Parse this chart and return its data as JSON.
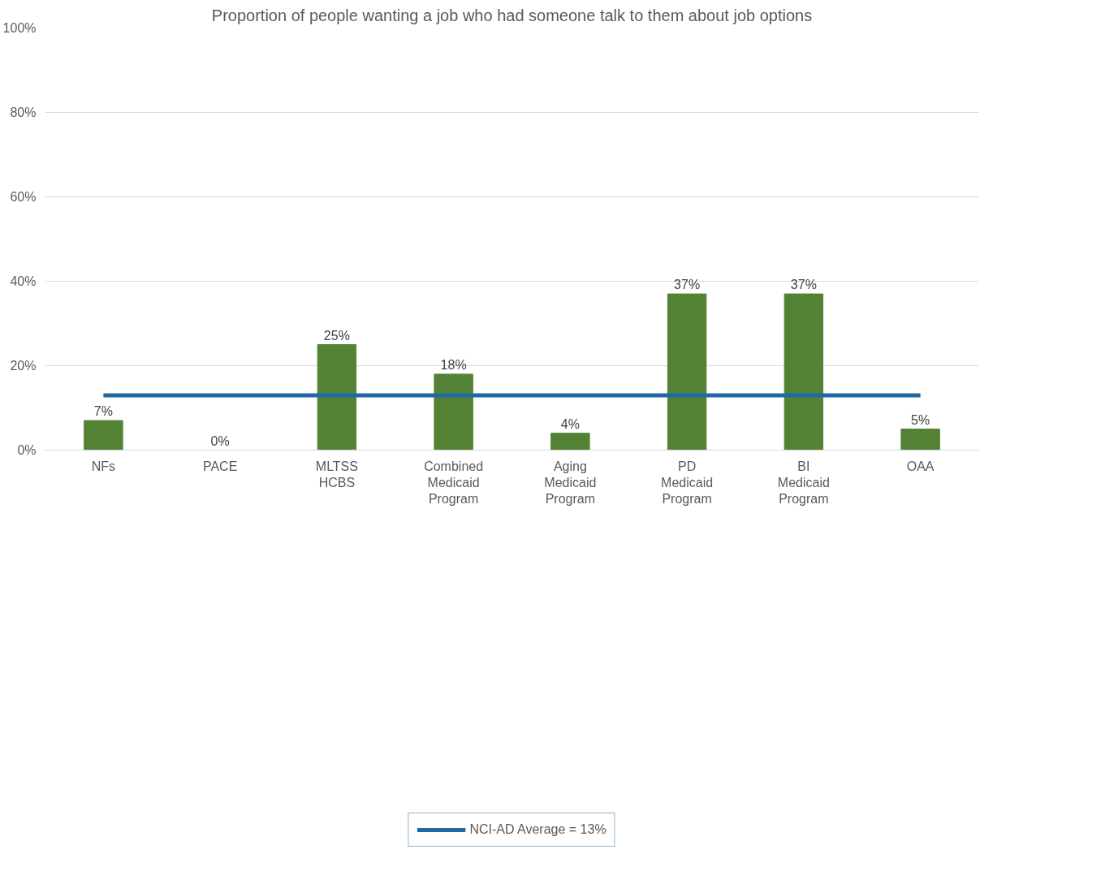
{
  "chart_data": {
    "type": "bar",
    "title": "Proportion of people wanting a job who had someone talk to them about job options",
    "categories": [
      "NFs",
      "PACE",
      "MLTSS HCBS",
      "Combined Medicaid Program",
      "Aging Medicaid Program",
      "PD Medicaid Program",
      "BI Medicaid Program",
      "OAA"
    ],
    "series": [
      {
        "color": "#548235",
        "values": [
          7,
          0,
          25,
          18,
          4,
          37,
          37,
          5
        ],
        "value_labels": [
          "7%",
          "0%",
          "25%",
          "18%",
          "4%",
          "37%",
          "37%",
          "5%"
        ]
      },
      {
        "type": "line",
        "name": "NCI-AD Average = 13%",
        "color": "#1f6aa5",
        "values": [
          13,
          13,
          13,
          13,
          13,
          13,
          13,
          13
        ]
      }
    ],
    "ylim": [
      0,
      100
    ],
    "yticks": [
      {
        "value": 0,
        "label": "0%"
      },
      {
        "value": 20,
        "label": "20%"
      },
      {
        "value": 40,
        "label": "40%"
      },
      {
        "value": 60,
        "label": "60%"
      },
      {
        "value": 80,
        "label": "80%"
      },
      {
        "value": 100,
        "label": "100%"
      }
    ],
    "grid": "y",
    "legend": "bottom"
  }
}
